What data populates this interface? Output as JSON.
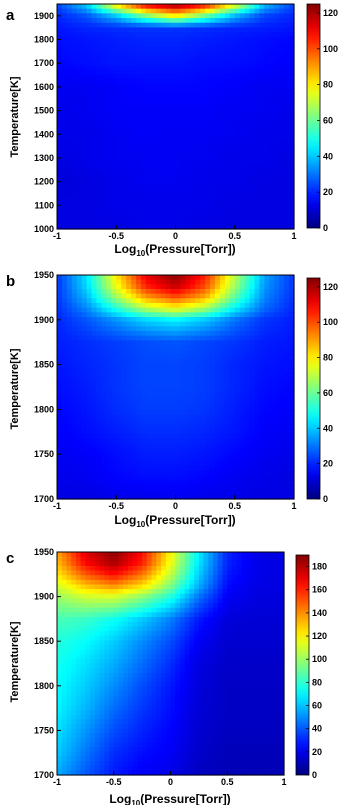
{
  "figure": {
    "panels": [
      {
        "panel_label": "a",
        "xlabel_main": "Log",
        "xlabel_sub": "10",
        "xlabel_tail": "(Pressure[Torr])",
        "ylabel": "Temperature[K]"
      },
      {
        "panel_label": "b",
        "xlabel_main": "Log",
        "xlabel_sub": "10",
        "xlabel_tail": "(Pressure[Torr])",
        "ylabel": "Temperature[K]"
      },
      {
        "panel_label": "c",
        "xlabel_main": "Log",
        "xlabel_sub": "10",
        "xlabel_tail": "(Pressure[Torr])",
        "ylabel": "Temperature[K]"
      }
    ]
  },
  "colormap": "jet",
  "chart_data": [
    {
      "type": "heatmap",
      "panel": "a",
      "xlabel": "Log10(Pressure[Torr])",
      "ylabel": "Temperature[K]",
      "xlim": [
        -1,
        1
      ],
      "ylim": [
        1000,
        1950
      ],
      "x_ticks": [
        "-1",
        "-0.5",
        "0",
        "0.5",
        "1"
      ],
      "y_ticks": [
        "1000",
        "1100",
        "1200",
        "1300",
        "1400",
        "1500",
        "1600",
        "1700",
        "1800",
        "1900"
      ],
      "colorbar": {
        "range": [
          0,
          125
        ],
        "ticks": [
          "0",
          "20",
          "40",
          "60",
          "80",
          "100",
          "120"
        ]
      },
      "x": [
        -1,
        -0.75,
        -0.5,
        -0.25,
        0,
        0.25,
        0.5,
        0.75,
        1
      ],
      "y": [
        1000,
        1100,
        1200,
        1300,
        1400,
        1500,
        1600,
        1700,
        1800,
        1850,
        1900,
        1950
      ],
      "z": [
        [
          12,
          12,
          12,
          13,
          13,
          12,
          12,
          12,
          12
        ],
        [
          12,
          12,
          13,
          13,
          13,
          13,
          12,
          12,
          12
        ],
        [
          11,
          12,
          13,
          14,
          14,
          13,
          13,
          12,
          12
        ],
        [
          12,
          13,
          14,
          14,
          14,
          14,
          13,
          13,
          12
        ],
        [
          13,
          13,
          14,
          15,
          14,
          14,
          14,
          13,
          13
        ],
        [
          13,
          14,
          15,
          15,
          15,
          15,
          14,
          14,
          13
        ],
        [
          14,
          14,
          15,
          16,
          16,
          16,
          15,
          14,
          14
        ],
        [
          16,
          17,
          18,
          18,
          18,
          17,
          17,
          16,
          15
        ],
        [
          17,
          18,
          19,
          20,
          20,
          19,
          18,
          17,
          16
        ],
        [
          18,
          20,
          21,
          22,
          22,
          21,
          20,
          19,
          18
        ],
        [
          20,
          26,
          40,
          62,
          80,
          60,
          38,
          24,
          20
        ],
        [
          24,
          42,
          85,
          115,
          125,
          112,
          80,
          40,
          24
        ]
      ]
    },
    {
      "type": "heatmap",
      "panel": "b",
      "xlabel": "Log10(Pressure[Torr])",
      "ylabel": "Temperature[K]",
      "xlim": [
        -1,
        1
      ],
      "ylim": [
        1700,
        1950
      ],
      "x_ticks": [
        "-1",
        "-0.5",
        "0",
        "0.5",
        "1"
      ],
      "y_ticks": [
        "1700",
        "1750",
        "1800",
        "1850",
        "1900",
        "1950"
      ],
      "colorbar": {
        "range": [
          0,
          125
        ],
        "ticks": [
          "0",
          "20",
          "40",
          "60",
          "80",
          "100",
          "120"
        ]
      },
      "x": [
        -1,
        -0.75,
        -0.5,
        -0.25,
        0,
        0.25,
        0.5,
        0.75,
        1
      ],
      "y": [
        1700,
        1725,
        1750,
        1775,
        1800,
        1825,
        1850,
        1875,
        1900,
        1912,
        1925,
        1937,
        1950
      ],
      "z": [
        [
          12,
          12,
          13,
          13,
          14,
          13,
          13,
          12,
          12
        ],
        [
          13,
          14,
          16,
          17,
          17,
          16,
          14,
          13,
          12
        ],
        [
          14,
          15,
          17,
          19,
          19,
          18,
          16,
          14,
          13
        ],
        [
          15,
          17,
          19,
          21,
          21,
          20,
          18,
          15,
          14
        ],
        [
          16,
          18,
          21,
          23,
          23,
          22,
          19,
          16,
          15
        ],
        [
          17,
          19,
          22,
          24,
          24,
          23,
          20,
          17,
          16
        ],
        [
          18,
          20,
          22,
          24,
          24,
          23,
          20,
          18,
          17
        ],
        [
          19,
          21,
          23,
          25,
          26,
          24,
          22,
          19,
          18
        ],
        [
          20,
          26,
          34,
          42,
          46,
          40,
          30,
          22,
          19
        ],
        [
          21,
          32,
          50,
          68,
          76,
          66,
          45,
          28,
          20
        ],
        [
          22,
          38,
          66,
          90,
          100,
          88,
          58,
          32,
          21
        ],
        [
          22,
          42,
          76,
          105,
          116,
          100,
          66,
          34,
          22
        ],
        [
          22,
          44,
          80,
          112,
          124,
          106,
          70,
          36,
          22
        ]
      ]
    },
    {
      "type": "heatmap",
      "panel": "c",
      "xlabel": "Log10(Pressure[Torr])",
      "ylabel": "Temperature[K]",
      "xlim": [
        -1,
        1
      ],
      "ylim": [
        1700,
        1950
      ],
      "x_ticks": [
        "-1",
        "-0.5",
        "0",
        "0.5",
        "1"
      ],
      "y_ticks": [
        "1700",
        "1750",
        "1800",
        "1850",
        "1900",
        "1950"
      ],
      "colorbar": {
        "range": [
          0,
          190
        ],
        "ticks": [
          "0",
          "20",
          "40",
          "60",
          "80",
          "100",
          "120",
          "140",
          "160",
          "180"
        ]
      },
      "x": [
        -1,
        -0.75,
        -0.5,
        -0.25,
        0,
        0.25,
        0.5,
        0.75,
        1
      ],
      "y": [
        1700,
        1725,
        1750,
        1775,
        1800,
        1825,
        1850,
        1875,
        1900,
        1912,
        1925,
        1937,
        1950
      ],
      "z": [
        [
          55,
          40,
          28,
          22,
          20,
          12,
          10,
          10,
          10
        ],
        [
          62,
          46,
          32,
          26,
          22,
          14,
          11,
          11,
          11
        ],
        [
          66,
          52,
          38,
          30,
          24,
          15,
          12,
          12,
          12
        ],
        [
          70,
          58,
          44,
          34,
          26,
          16,
          13,
          13,
          13
        ],
        [
          72,
          62,
          50,
          38,
          28,
          17,
          13,
          13,
          13
        ],
        [
          75,
          66,
          56,
          44,
          32,
          18,
          14,
          14,
          14
        ],
        [
          78,
          72,
          62,
          50,
          38,
          22,
          15,
          15,
          15
        ],
        [
          85,
          82,
          74,
          62,
          48,
          28,
          17,
          16,
          16
        ],
        [
          100,
          110,
          112,
          98,
          78,
          45,
          22,
          18,
          17
        ],
        [
          110,
          130,
          140,
          125,
          95,
          56,
          25,
          19,
          18
        ],
        [
          122,
          150,
          165,
          145,
          108,
          62,
          28,
          20,
          18
        ],
        [
          130,
          165,
          182,
          160,
          116,
          66,
          30,
          20,
          18
        ],
        [
          135,
          172,
          188,
          165,
          120,
          68,
          30,
          20,
          18
        ]
      ]
    }
  ]
}
